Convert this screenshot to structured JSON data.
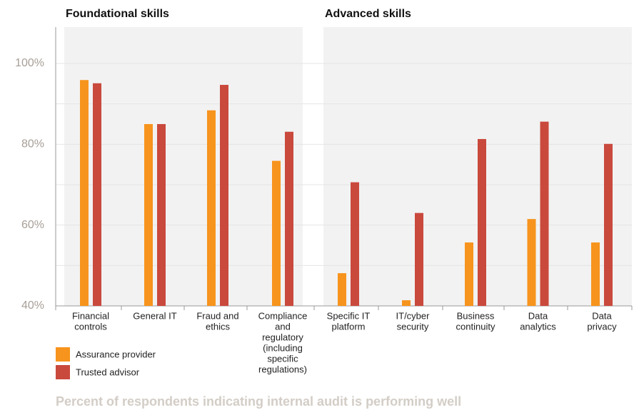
{
  "chart_data": {
    "type": "bar",
    "groups": [
      {
        "title": "Foundational skills",
        "categories": [
          [
            "Financial",
            "controls"
          ],
          [
            "General IT"
          ],
          [
            "Fraud and",
            "ethics"
          ],
          [
            "Compliance",
            "and",
            "regulatory",
            "(including",
            "specific",
            "regulations)"
          ]
        ]
      },
      {
        "title": "Advanced skills",
        "categories": [
          [
            "Specific IT",
            "platform"
          ],
          [
            "IT/cyber",
            "security"
          ],
          [
            "Business",
            "continuity"
          ],
          [
            "Data",
            "analytics"
          ],
          [
            "Data",
            "privacy"
          ]
        ]
      }
    ],
    "series": [
      {
        "name": "Assurance provider",
        "color": "#f7941d",
        "values": [
          95.9,
          85.0,
          88.4,
          75.9,
          48.1,
          41.4,
          55.7,
          61.5,
          55.7
        ]
      },
      {
        "name": "Trusted advisor",
        "color": "#c9493d",
        "values": [
          95.1,
          85.0,
          94.7,
          83.1,
          70.6,
          63.0,
          81.3,
          85.6,
          80.1
        ]
      }
    ],
    "ylim": [
      40,
      109
    ],
    "yticks": [
      {
        "value": 40,
        "label": "40%"
      },
      {
        "value": 60,
        "label": "60%"
      },
      {
        "value": 80,
        "label": "80%"
      },
      {
        "value": 100,
        "label": "100%"
      }
    ],
    "minor_gridlines": [
      50,
      70,
      90
    ],
    "footnote": "Percent of respondents indicating internal audit is performing well"
  }
}
